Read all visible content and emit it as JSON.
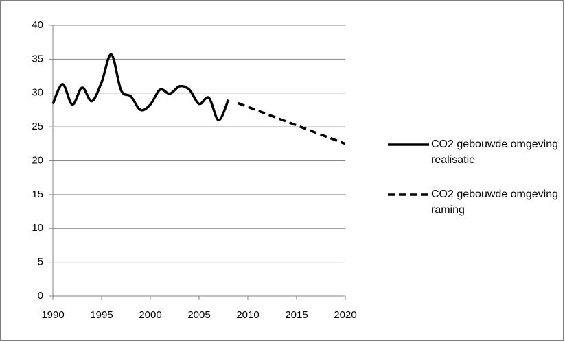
{
  "chart_data": {
    "type": "line",
    "series": [
      {
        "name": "CO2 gebouwde omgeving realisatie",
        "color": "#000000",
        "dash": false,
        "x": [
          1990,
          1991,
          1992,
          1993,
          1994,
          1995,
          1996,
          1997,
          1998,
          1999,
          2000,
          2001,
          2002,
          2003,
          2004,
          2005,
          2006,
          2007,
          2008
        ],
        "values": [
          28.4,
          31.3,
          28.3,
          30.8,
          28.8,
          31.6,
          35.7,
          30.4,
          29.5,
          27.5,
          28.3,
          30.5,
          29.9,
          31.0,
          30.5,
          28.4,
          29.3,
          26.0,
          29.0
        ]
      },
      {
        "name": "CO2 gebouwde omgeving raming",
        "color": "#000000",
        "dash": true,
        "x": [
          2009,
          2020
        ],
        "values": [
          28.5,
          22.5
        ]
      }
    ],
    "xlim": [
      1990,
      2020
    ],
    "xticks": [
      1990,
      1995,
      2000,
      2005,
      2010,
      2015,
      2020
    ],
    "ylim": [
      0,
      40
    ],
    "yticks": [
      0,
      5,
      10,
      15,
      20,
      25,
      30,
      35,
      40
    ],
    "grid": true,
    "legend": "right"
  }
}
